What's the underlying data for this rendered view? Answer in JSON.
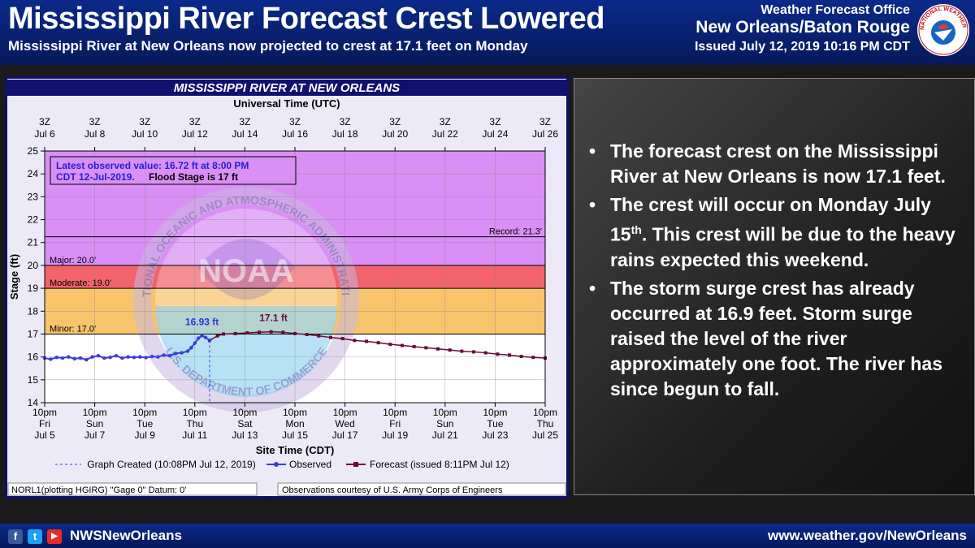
{
  "header": {
    "title": "Mississippi River Forecast Crest Lowered",
    "subtitle": "Mississippi River at New Orleans now projected to crest at 17.1 feet on Monday",
    "office_line1": "Weather Forecast Office",
    "office_line2": "New Orleans/Baton Rouge",
    "issued": "Issued July 12, 2019 10:16 PM CDT",
    "seal_text": "NATIONAL WEATHER SERVICE"
  },
  "chart_data": {
    "type": "line",
    "title": "MISSISSIPPI RIVER AT NEW ORLEANS",
    "top_axis_title": "Universal Time (UTC)",
    "top_ticks": [
      {
        "t1": "3Z",
        "t2": "Jul 6"
      },
      {
        "t1": "3Z",
        "t2": "Jul 8"
      },
      {
        "t1": "3Z",
        "t2": "Jul 10"
      },
      {
        "t1": "3Z",
        "t2": "Jul 12"
      },
      {
        "t1": "3Z",
        "t2": "Jul 14"
      },
      {
        "t1": "3Z",
        "t2": "Jul 16"
      },
      {
        "t1": "3Z",
        "t2": "Jul 18"
      },
      {
        "t1": "3Z",
        "t2": "Jul 20"
      },
      {
        "t1": "3Z",
        "t2": "Jul 22"
      },
      {
        "t1": "3Z",
        "t2": "Jul 24"
      },
      {
        "t1": "3Z",
        "t2": "Jul 26"
      }
    ],
    "bottom_ticks": [
      {
        "t1": "10pm",
        "t2": "Fri",
        "t3": "Jul 5"
      },
      {
        "t1": "10pm",
        "t2": "Sun",
        "t3": "Jul 7"
      },
      {
        "t1": "10pm",
        "t2": "Tue",
        "t3": "Jul 9"
      },
      {
        "t1": "10pm",
        "t2": "Thu",
        "t3": "Jul 11"
      },
      {
        "t1": "10pm",
        "t2": "Sat",
        "t3": "Jul 13"
      },
      {
        "t1": "10pm",
        "t2": "Mon",
        "t3": "Jul 15"
      },
      {
        "t1": "10pm",
        "t2": "Wed",
        "t3": "Jul 17"
      },
      {
        "t1": "10pm",
        "t2": "Fri",
        "t3": "Jul 19"
      },
      {
        "t1": "10pm",
        "t2": "Sun",
        "t3": "Jul 21"
      },
      {
        "t1": "10pm",
        "t2": "Tue",
        "t3": "Jul 23"
      },
      {
        "t1": "10pm",
        "t2": "Thu",
        "t3": "Jul 25"
      }
    ],
    "xlabel": "Site Time (CDT)",
    "ylabel": "Stage (ft)",
    "x_unit": "days since 10pm Jul 5",
    "xlim": [
      0,
      21
    ],
    "ylim": [
      14,
      25
    ],
    "yticks": [
      14,
      15,
      16,
      17,
      18,
      19,
      20,
      21,
      22,
      23,
      24,
      25
    ],
    "bands": [
      {
        "name": "Major",
        "from": 20,
        "to": 25,
        "color": "#d98ff5"
      },
      {
        "name": "Moderate",
        "from": 19,
        "to": 20,
        "color": "#f2636b"
      },
      {
        "name": "Minor",
        "from": 17,
        "to": 19,
        "color": "#f7c46c"
      }
    ],
    "thresholds": [
      {
        "label": "Record: 21.3'",
        "value": 21.25,
        "side": "right"
      },
      {
        "label": "Major: 20.0'",
        "value": 20.0,
        "side": "left"
      },
      {
        "label": "Moderate: 19.0'",
        "value": 19.0,
        "side": "left"
      },
      {
        "label": "Minor: 17.0'",
        "value": 17.0,
        "side": "left"
      }
    ],
    "latest_box_line1": "Latest observed value: 16.72 ft at 8:00 PM",
    "latest_box_line2a": "CDT 12-Jul-2019.",
    "latest_box_line2b": "Flood Stage is 17 ft",
    "graph_created_x": 6.92,
    "peak_labels": [
      {
        "text": "16.93 ft",
        "x": 6.6,
        "y": 16.93,
        "color": "#3333dd"
      },
      {
        "text": "17.1 ft",
        "x": 9.6,
        "y": 17.1,
        "color": "#6a0a3c"
      }
    ],
    "observed": {
      "name": "Observed",
      "color": "#3b3bdd",
      "points": [
        [
          0,
          15.95
        ],
        [
          0.25,
          15.9
        ],
        [
          0.5,
          15.98
        ],
        [
          0.75,
          15.95
        ],
        [
          1,
          16.0
        ],
        [
          1.25,
          15.92
        ],
        [
          1.5,
          15.95
        ],
        [
          1.75,
          15.88
        ],
        [
          2,
          16.0
        ],
        [
          2.25,
          16.05
        ],
        [
          2.5,
          15.95
        ],
        [
          2.75,
          15.98
        ],
        [
          3,
          16.05
        ],
        [
          3.25,
          15.95
        ],
        [
          3.5,
          16.0
        ],
        [
          3.75,
          15.98
        ],
        [
          4,
          16.0
        ],
        [
          4.25,
          15.97
        ],
        [
          4.5,
          16.02
        ],
        [
          4.75,
          16.0
        ],
        [
          5,
          16.08
        ],
        [
          5.25,
          16.05
        ],
        [
          5.5,
          16.15
        ],
        [
          5.75,
          16.18
        ],
        [
          6,
          16.25
        ],
        [
          6.15,
          16.4
        ],
        [
          6.3,
          16.6
        ],
        [
          6.45,
          16.82
        ],
        [
          6.6,
          16.93
        ],
        [
          6.75,
          16.85
        ],
        [
          6.92,
          16.72
        ]
      ]
    },
    "forecast": {
      "name": "Forecast (issued 8:11PM Jul 12)",
      "color": "#6a0a3c",
      "points": [
        [
          6.92,
          16.72
        ],
        [
          7.25,
          16.92
        ],
        [
          7.5,
          17.0
        ],
        [
          8,
          17.02
        ],
        [
          8.5,
          17.05
        ],
        [
          9,
          17.08
        ],
        [
          9.5,
          17.1
        ],
        [
          10,
          17.08
        ],
        [
          10.5,
          17.02
        ],
        [
          11,
          16.98
        ],
        [
          11.5,
          16.92
        ],
        [
          12,
          16.85
        ],
        [
          12.5,
          16.8
        ],
        [
          13,
          16.72
        ],
        [
          13.5,
          16.68
        ],
        [
          14,
          16.62
        ],
        [
          14.5,
          16.55
        ],
        [
          15,
          16.5
        ],
        [
          15.5,
          16.45
        ],
        [
          16,
          16.4
        ],
        [
          16.5,
          16.35
        ],
        [
          17,
          16.3
        ],
        [
          17.5,
          16.25
        ],
        [
          18,
          16.22
        ],
        [
          18.5,
          16.18
        ],
        [
          19,
          16.12
        ],
        [
          19.5,
          16.08
        ],
        [
          20,
          16.02
        ],
        [
          20.5,
          15.98
        ],
        [
          21,
          15.95
        ]
      ]
    },
    "legend_created": "Graph Created (10:08PM Jul 12, 2019)",
    "legend_observed": "Observed",
    "legend_forecast": "Forecast (issued 8:11PM Jul 12)",
    "footnote_left": "NORL1(plotting HGIRG) \"Gage 0\" Datum: 0'",
    "footnote_right": "Observations courtesy of U.S. Army Corps of Engineers",
    "watermark_noaa": "NOAA",
    "watermark_top": "NATIONAL OCEANIC AND ATMOSPHERIC ADMINISTRATION",
    "watermark_bottom": "U.S. DEPARTMENT OF COMMERCE"
  },
  "bullets": {
    "b1": "The forecast crest on the Mississippi River at New Orleans is now 17.1 feet.",
    "b2_pre": "The crest will occur on Monday July 15",
    "b2_sup": "th",
    "b2_post": ". This crest will be due to the heavy rains expected this weekend.",
    "b3": "The storm surge crest has already occurred at 16.9 feet.  Storm surge raised the level of the river approximately one foot. The river has since begun to fall."
  },
  "footer": {
    "handle": "NWSNewOrleans",
    "website": "www.weather.gov/NewOrleans",
    "icon_f": "f",
    "icon_t": "t",
    "icon_y": "▶"
  },
  "colors": {
    "frame": "#10106e",
    "plot_bg": "#ffffff",
    "axis": "#000000"
  }
}
